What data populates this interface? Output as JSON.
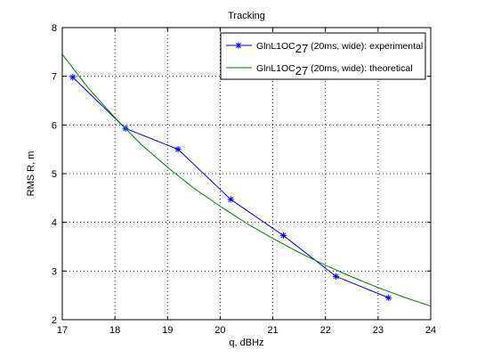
{
  "chart_data": {
    "type": "line",
    "title": "Tracking",
    "xlabel": "q, dBHz",
    "ylabel": "RMS R, m",
    "xlim": [
      17,
      24
    ],
    "ylim": [
      2,
      8
    ],
    "xticks": [
      "17",
      "18",
      "19",
      "20",
      "21",
      "22",
      "23",
      "24"
    ],
    "yticks": [
      "2",
      "3",
      "4",
      "5",
      "6",
      "7",
      "8"
    ],
    "grid": true,
    "legend_position": "top-right",
    "series": [
      {
        "name_main": "GlnL1OC",
        "name_sub": "27",
        "name_rest": " (20ms, wide): experimental",
        "color": "#0000ff",
        "marker": "asterisk",
        "x": [
          17.2,
          18.2,
          19.2,
          20.2,
          21.2,
          22.2,
          23.2
        ],
        "y": [
          6.98,
          5.93,
          5.5,
          4.47,
          3.73,
          2.89,
          2.45
        ]
      },
      {
        "name_main": "GlnL1OC",
        "name_sub": "27",
        "name_rest": " (20ms, wide): theoretical",
        "color": "#008000",
        "marker": "none",
        "x": [
          17.0,
          17.5,
          18.0,
          18.5,
          19.0,
          19.5,
          20.0,
          20.5,
          21.0,
          21.5,
          22.0,
          22.5,
          23.0,
          23.5,
          24.0
        ],
        "y": [
          7.45,
          6.75,
          6.15,
          5.6,
          5.13,
          4.7,
          4.33,
          3.98,
          3.67,
          3.38,
          3.12,
          2.88,
          2.66,
          2.46,
          2.28
        ]
      }
    ]
  }
}
